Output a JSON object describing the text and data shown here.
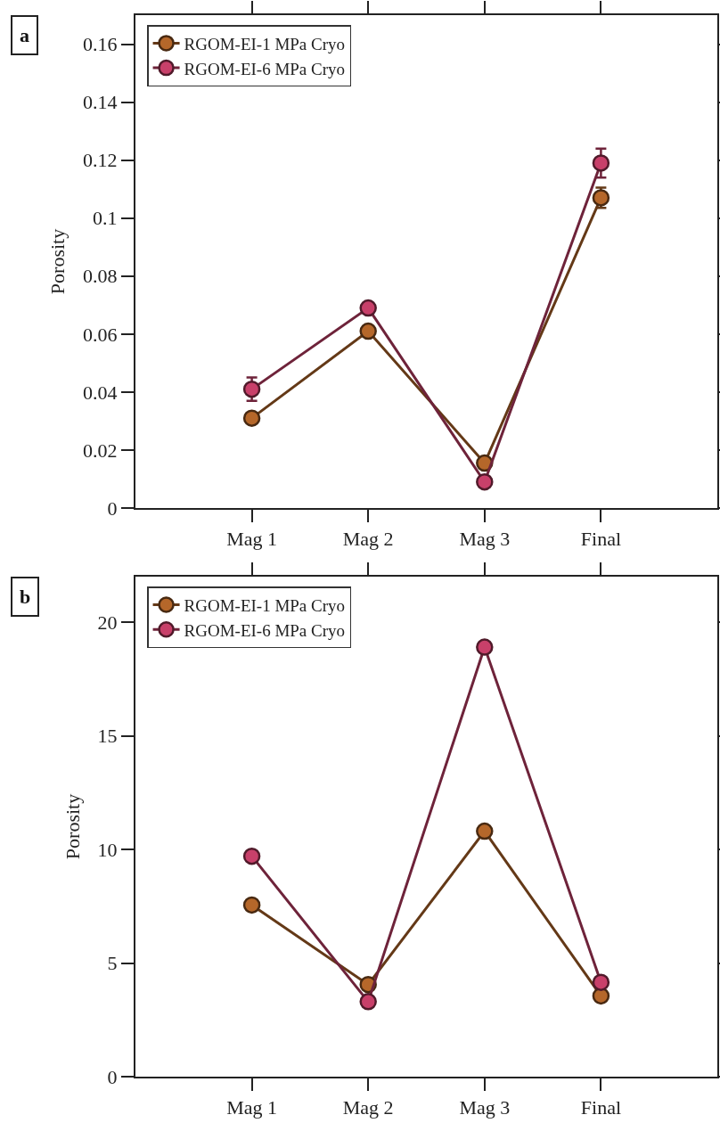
{
  "chart_data": [
    {
      "type": "line",
      "annotations": [
        "a"
      ],
      "ylabel": "Porosity",
      "categories": [
        "Mag 1",
        "Mag 2",
        "Mag 3",
        "Final"
      ],
      "ylim": [
        0,
        0.17
      ],
      "yticks": [
        0,
        0.02,
        0.04,
        0.06,
        0.08,
        {
          "value": 0.1,
          "label": "0.1"
        },
        0.12,
        0.14,
        0.16
      ],
      "legend": "top left",
      "marker": "circle",
      "line_style": "solid",
      "grid": false,
      "series": [
        {
          "name": "RGOM-EI-1 MPa Cryo",
          "color": "#b5672a",
          "values": [
            0.031,
            0.061,
            0.0155,
            0.107
          ],
          "errors": [
            null,
            null,
            null,
            0.0035
          ]
        },
        {
          "name": "RGOM-EI-6 MPa Cryo",
          "color": "#c8406a",
          "values": [
            0.041,
            0.069,
            0.009,
            0.119
          ],
          "errors": [
            0.004,
            null,
            null,
            0.005
          ]
        }
      ]
    },
    {
      "type": "line",
      "annotations": [
        "b"
      ],
      "ylabel": "Porosity",
      "categories": [
        "Mag 1",
        "Mag 2",
        "Mag 3",
        "Final"
      ],
      "ylim": [
        0,
        22
      ],
      "yticks": [
        0,
        5,
        10,
        15,
        20
      ],
      "legend": "top left",
      "marker": "circle",
      "line_style": "solid",
      "grid": false,
      "series": [
        {
          "name": "RGOM-EI-1 MPa Cryo",
          "color": "#b5672a",
          "values": [
            7.55,
            4.05,
            10.8,
            3.55
          ]
        },
        {
          "name": "RGOM-EI-6 MPa Cryo",
          "color": "#c8406a",
          "values": [
            9.7,
            3.3,
            18.9,
            4.15
          ]
        }
      ]
    }
  ]
}
